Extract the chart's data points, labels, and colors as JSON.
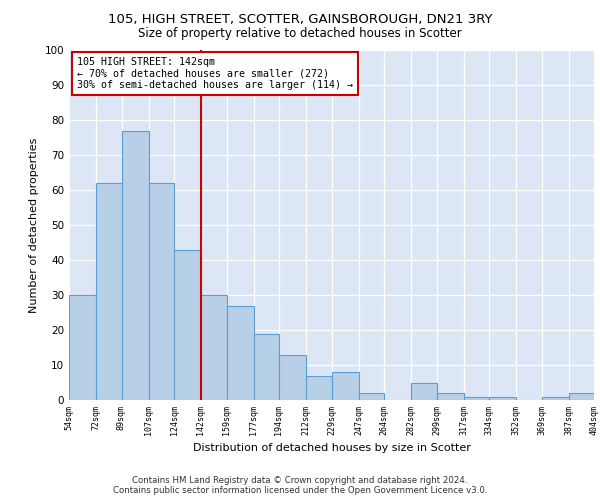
{
  "title1": "105, HIGH STREET, SCOTTER, GAINSBOROUGH, DN21 3RY",
  "title2": "Size of property relative to detached houses in Scotter",
  "xlabel": "Distribution of detached houses by size in Scotter",
  "ylabel": "Number of detached properties",
  "footer1": "Contains HM Land Registry data © Crown copyright and database right 2024.",
  "footer2": "Contains public sector information licensed under the Open Government Licence v3.0.",
  "annotation_line1": "105 HIGH STREET: 142sqm",
  "annotation_line2": "← 70% of detached houses are smaller (272)",
  "annotation_line3": "30% of semi-detached houses are larger (114) →",
  "bar_color": "#b8cfe8",
  "bar_edge_color": "#5a9fd4",
  "marker_color": "#cc0000",
  "marker_value": 142,
  "bins": [
    54,
    72,
    89,
    107,
    124,
    142,
    159,
    177,
    194,
    212,
    229,
    247,
    264,
    282,
    299,
    317,
    334,
    352,
    369,
    387,
    404
  ],
  "values": [
    30,
    62,
    77,
    62,
    43,
    30,
    27,
    19,
    13,
    7,
    8,
    2,
    0,
    5,
    2,
    1,
    1,
    0,
    1,
    2
  ],
  "ylim": [
    0,
    100
  ],
  "plot_bg_color": "#dce6f5"
}
